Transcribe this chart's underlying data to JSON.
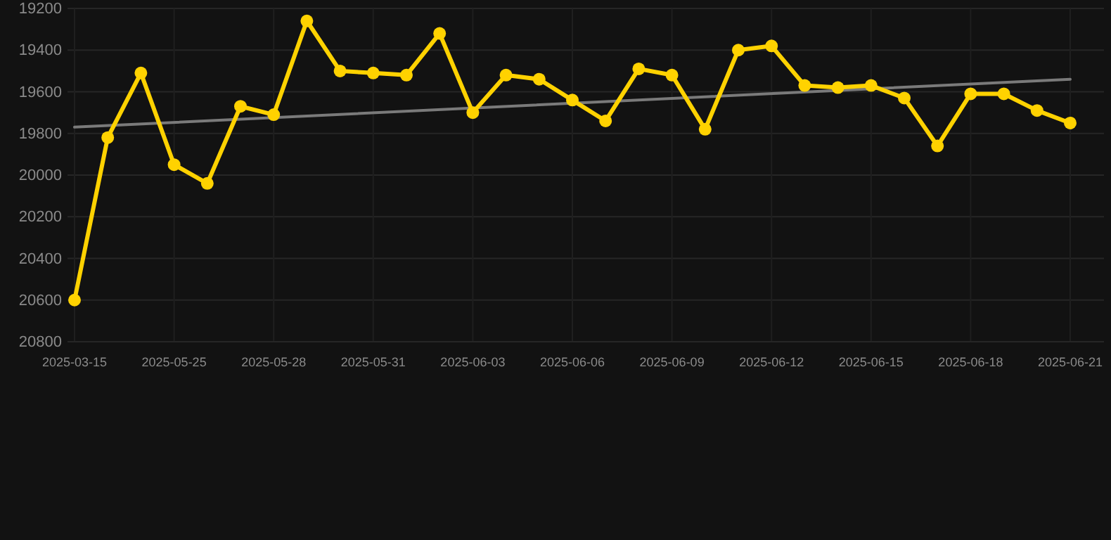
{
  "chart_data": {
    "type": "line",
    "categories": [
      "2025-03-15",
      null,
      null,
      "2025-05-25",
      null,
      null,
      "2025-05-28",
      null,
      null,
      "2025-05-31",
      null,
      null,
      "2025-06-03",
      null,
      null,
      "2025-06-06",
      null,
      null,
      "2025-06-09",
      null,
      null,
      "2025-06-12",
      null,
      null,
      "2025-06-15",
      null,
      null,
      "2025-06-18",
      null,
      null,
      "2025-06-21"
    ],
    "series": [
      {
        "color": "#ffd200",
        "marker": "circle",
        "values": [
          20600,
          19820,
          19510,
          19950,
          20040,
          19670,
          19710,
          19260,
          19500,
          19510,
          19520,
          19320,
          19700,
          19520,
          19540,
          19640,
          19740,
          19490,
          19520,
          19780,
          19400,
          19380,
          19570,
          19580,
          19570,
          19630,
          19860,
          19610,
          19610,
          19690,
          19750
        ]
      },
      {
        "type": "line",
        "color": "#7a7a7a",
        "marker": "none",
        "values": [
          19770,
          null,
          null,
          null,
          null,
          null,
          null,
          null,
          null,
          null,
          null,
          null,
          null,
          null,
          null,
          null,
          null,
          null,
          null,
          null,
          null,
          null,
          null,
          null,
          null,
          null,
          null,
          null,
          null,
          null,
          19540
        ]
      }
    ],
    "ylim": [
      20800,
      19200
    ],
    "yticks": [
      19200,
      19400,
      19600,
      19800,
      20000,
      20200,
      20400,
      20600,
      20800
    ],
    "grid": true,
    "line_style": "solid"
  }
}
